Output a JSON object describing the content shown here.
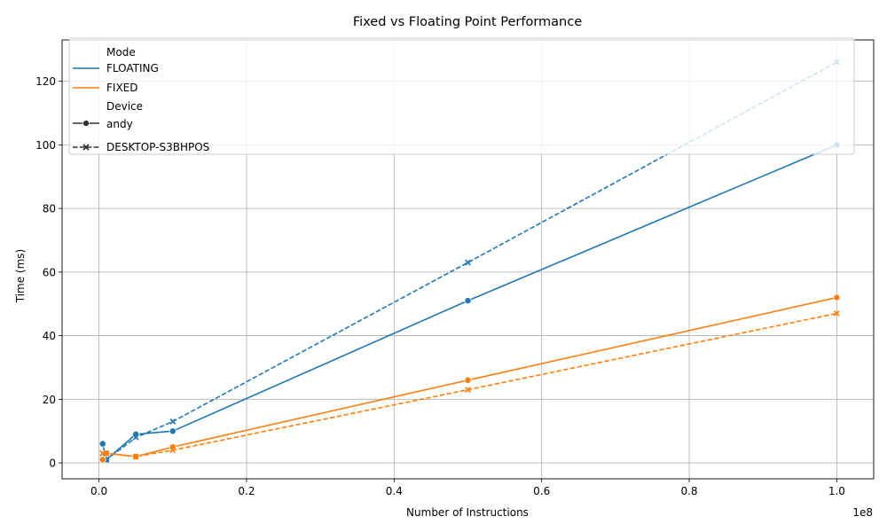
{
  "chart_data": {
    "type": "line",
    "title": "Fixed vs Floating Point Performance",
    "xlabel": "Number of Instructions",
    "ylabel": "Time (ms)",
    "x_offset_label": "1e8",
    "xlim": [
      -0.05,
      1.05
    ],
    "ylim": [
      -5,
      133
    ],
    "x_scale": 100000000,
    "xticks": [
      0.0,
      0.2,
      0.4,
      0.6,
      0.8,
      1.0
    ],
    "xtick_labels": [
      "0.0",
      "0.2",
      "0.4",
      "0.6",
      "0.8",
      "1.0"
    ],
    "yticks": [
      0,
      20,
      40,
      60,
      80,
      100,
      120
    ],
    "ytick_labels": [
      "0",
      "20",
      "40",
      "60",
      "80",
      "100",
      "120"
    ],
    "grid": true,
    "legend": {
      "placement": "top-left",
      "hue_title": "Mode",
      "style_title": "Device",
      "hue_entries": [
        {
          "label": "FLOATING",
          "color": "#1f77b4"
        },
        {
          "label": "FIXED",
          "color": "#ff7f0e"
        }
      ],
      "style_entries": [
        {
          "label": "andy",
          "marker": "circle",
          "dash": "solid"
        },
        {
          "label": "DESKTOP-S3BHPOS",
          "marker": "x",
          "dash": "dashed"
        }
      ]
    },
    "series": [
      {
        "name": "FLOATING",
        "device": "andy",
        "color": "#1f77b4",
        "dash": "solid",
        "marker": "circle",
        "x": [
          500000,
          1000000,
          5000000,
          10000000,
          50000000,
          100000000
        ],
        "y": [
          6,
          1,
          9,
          10,
          51,
          100
        ]
      },
      {
        "name": "FLOATING",
        "device": "DESKTOP-S3BHPOS",
        "color": "#1f77b4",
        "dash": "dashed",
        "marker": "x",
        "x": [
          500000,
          1000000,
          5000000,
          10000000,
          50000000,
          100000000
        ],
        "y": [
          3,
          1,
          8,
          13,
          63,
          126
        ]
      },
      {
        "name": "FIXED",
        "device": "andy",
        "color": "#ff7f0e",
        "dash": "solid",
        "marker": "circle",
        "x": [
          500000,
          1000000,
          5000000,
          10000000,
          50000000,
          100000000
        ],
        "y": [
          1,
          3,
          2,
          5,
          26,
          52
        ]
      },
      {
        "name": "FIXED",
        "device": "DESKTOP-S3BHPOS",
        "color": "#ff7f0e",
        "dash": "dashed",
        "marker": "x",
        "x": [
          500000,
          1000000,
          5000000,
          10000000,
          50000000,
          100000000
        ],
        "y": [
          3,
          3,
          2,
          4,
          23,
          47
        ]
      }
    ]
  }
}
